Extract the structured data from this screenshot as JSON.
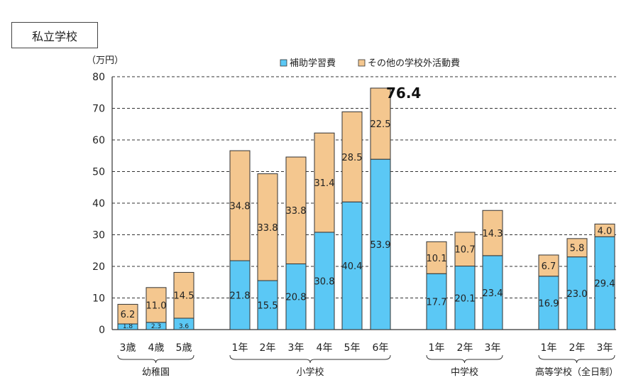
{
  "page_title": "私立学校",
  "chart_data": {
    "type": "bar",
    "stacked": true,
    "unit_label": "（万円）",
    "ylim": [
      0,
      80
    ],
    "yticks": [
      0,
      10,
      20,
      30,
      40,
      50,
      60,
      70,
      80
    ],
    "grid": true,
    "legend_position": "top",
    "series": [
      {
        "name": "補助学習費",
        "color": "#5BC8F5"
      },
      {
        "name": "その他の学校外活動費",
        "color": "#F4C78F"
      }
    ],
    "groups": [
      {
        "name": "幼稚園",
        "bars": [
          {
            "category": "3歳",
            "values": [
              1.8,
              6.2
            ],
            "labels": [
              "1.8",
              "6.2"
            ]
          },
          {
            "category": "4歳",
            "values": [
              2.3,
              11.0
            ],
            "labels": [
              "2.3",
              "11.0"
            ]
          },
          {
            "category": "5歳",
            "values": [
              3.6,
              14.5
            ],
            "labels": [
              "3.6",
              "14.5"
            ]
          }
        ]
      },
      {
        "name": "小学校",
        "bars": [
          {
            "category": "1年",
            "values": [
              21.8,
              34.8
            ],
            "labels": [
              "21.8",
              "34.8"
            ]
          },
          {
            "category": "2年",
            "values": [
              15.5,
              33.8
            ],
            "labels": [
              "15.5",
              "33.8"
            ]
          },
          {
            "category": "3年",
            "values": [
              20.8,
              33.8
            ],
            "labels": [
              "20.8",
              "33.8"
            ]
          },
          {
            "category": "4年",
            "values": [
              30.8,
              31.4
            ],
            "labels": [
              "30.8",
              "31.4"
            ]
          },
          {
            "category": "5年",
            "values": [
              40.4,
              28.5
            ],
            "labels": [
              "40.4",
              "28.5"
            ]
          },
          {
            "category": "6年",
            "values": [
              53.9,
              22.5
            ],
            "labels": [
              "53.9",
              "22.5"
            ],
            "total_label": "76.4"
          }
        ]
      },
      {
        "name": "中学校",
        "bars": [
          {
            "category": "1年",
            "values": [
              17.7,
              10.1
            ],
            "labels": [
              "17.7",
              "10.1"
            ]
          },
          {
            "category": "2年",
            "values": [
              20.1,
              10.7
            ],
            "labels": [
              "20.1",
              "10.7"
            ]
          },
          {
            "category": "3年",
            "values": [
              23.4,
              14.3
            ],
            "labels": [
              "23.4",
              "14.3"
            ]
          }
        ]
      },
      {
        "name": "高等学校（全日制）",
        "bars": [
          {
            "category": "1年",
            "values": [
              16.9,
              6.7
            ],
            "labels": [
              "16.9",
              "6.7"
            ]
          },
          {
            "category": "2年",
            "values": [
              23.0,
              5.8
            ],
            "labels": [
              "23.0",
              "5.8"
            ]
          },
          {
            "category": "3年",
            "values": [
              29.4,
              4.0
            ],
            "labels": [
              "29.4",
              "4.0"
            ]
          }
        ]
      }
    ]
  }
}
